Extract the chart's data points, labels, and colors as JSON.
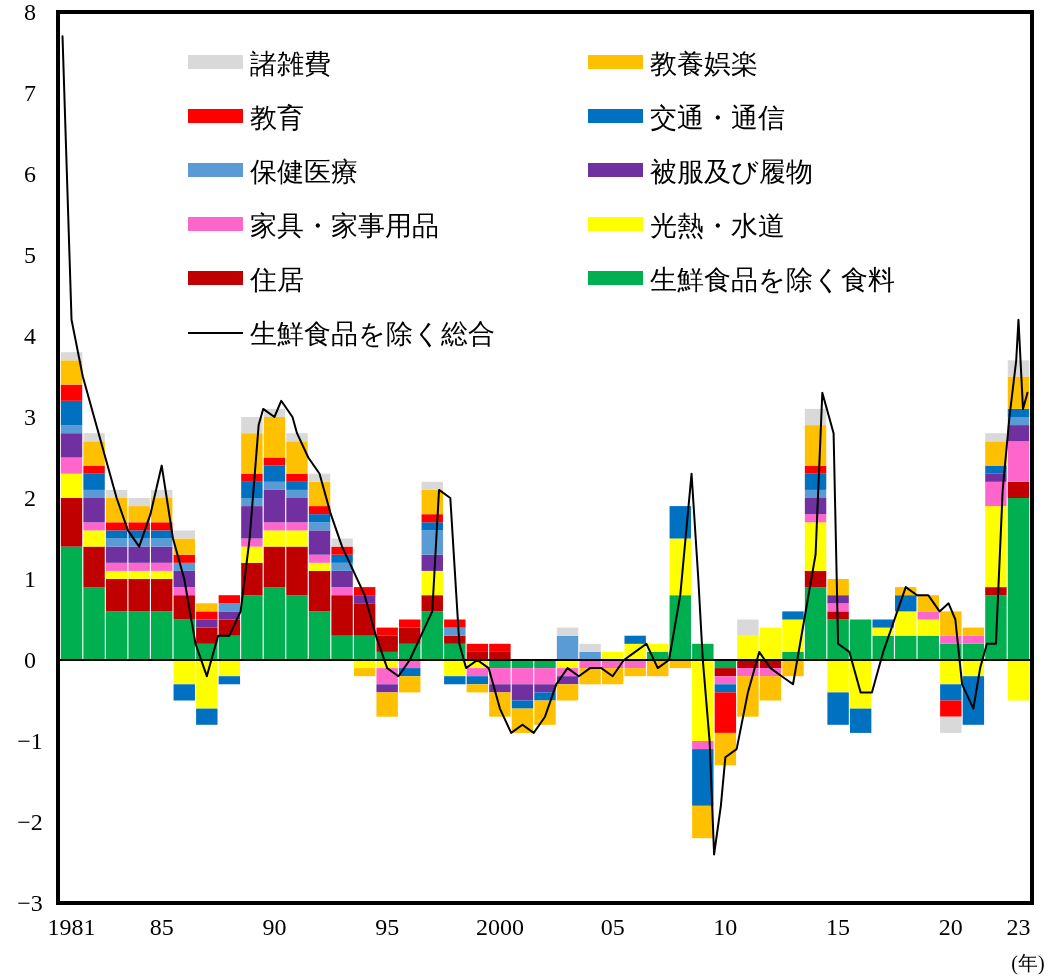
{
  "chart_data": {
    "type": "bar",
    "stacked": true,
    "legend": "top",
    "xlabel": "(年)",
    "xlim": [
      1980.4,
      2023.6
    ],
    "ylim": [
      -3,
      8
    ],
    "yticks": [
      -3,
      -2,
      -1,
      0,
      1,
      2,
      3,
      4,
      5,
      6,
      7,
      8
    ],
    "xticks": [
      {
        "value": 1981,
        "label": "1981"
      },
      {
        "value": 1985,
        "label": "85"
      },
      {
        "value": 1990,
        "label": "90"
      },
      {
        "value": 1995,
        "label": "95"
      },
      {
        "value": 2000,
        "label": "2000"
      },
      {
        "value": 2005,
        "label": "05"
      },
      {
        "value": 2010,
        "label": "10"
      },
      {
        "value": 2015,
        "label": "15"
      },
      {
        "value": 2020,
        "label": "20"
      },
      {
        "value": 2023,
        "label": "23"
      }
    ],
    "x": [
      1981,
      1982,
      1983,
      1984,
      1985,
      1986,
      1987,
      1988,
      1989,
      1990,
      1991,
      1992,
      1993,
      1994,
      1995,
      1996,
      1997,
      1998,
      1999,
      2000,
      2001,
      2002,
      2003,
      2004,
      2005,
      2006,
      2007,
      2008,
      2009,
      2010,
      2011,
      2012,
      2013,
      2014,
      2015,
      2016,
      2017,
      2018,
      2019,
      2020,
      2021,
      2022,
      2023
    ],
    "series": [
      {
        "name": "生鮮食品を除く食料",
        "color": "#00b050",
        "values": [
          1.4,
          0.9,
          0.6,
          0.6,
          0.6,
          0.5,
          0.2,
          0.3,
          0.8,
          0.9,
          0.8,
          0.6,
          0.3,
          0.3,
          0.1,
          0.2,
          0.6,
          0.2,
          0.0,
          -0.1,
          -0.1,
          -0.1,
          0.0,
          0.0,
          0.0,
          0.0,
          0.1,
          0.8,
          0.2,
          -0.1,
          0.0,
          0.0,
          0.1,
          0.9,
          0.5,
          0.5,
          0.3,
          0.3,
          0.3,
          0.2,
          0.2,
          0.8,
          2.0
        ]
      },
      {
        "name": "住居",
        "color": "#c00000",
        "values": [
          0.6,
          0.5,
          0.4,
          0.4,
          0.4,
          0.3,
          0.2,
          0.2,
          0.4,
          0.5,
          0.6,
          0.5,
          0.5,
          0.4,
          0.2,
          0.2,
          0.2,
          0.1,
          0.1,
          0.1,
          0.0,
          0.0,
          0.0,
          0.0,
          0.0,
          0.0,
          0.0,
          0.0,
          0.0,
          -0.1,
          -0.1,
          -0.1,
          0.0,
          0.2,
          0.1,
          0.0,
          0.0,
          0.0,
          0.0,
          0.0,
          0.0,
          0.1,
          0.2
        ]
      },
      {
        "name": "光熱・水道",
        "color": "#ffff00",
        "values": [
          0.3,
          0.2,
          0.1,
          0.1,
          0.1,
          -0.3,
          -0.6,
          -0.2,
          0.2,
          0.2,
          0.2,
          0.1,
          0.0,
          -0.1,
          -0.1,
          0.0,
          0.3,
          -0.2,
          -0.1,
          0.0,
          0.0,
          0.0,
          -0.1,
          0.0,
          0.1,
          0.2,
          0.1,
          0.7,
          -1.0,
          0.0,
          0.3,
          0.4,
          0.4,
          0.6,
          -0.4,
          -0.6,
          0.1,
          0.3,
          0.2,
          -0.3,
          -0.2,
          1.0,
          -0.5
        ]
      },
      {
        "name": "家具・家事用品",
        "color": "#ff66cc",
        "values": [
          0.2,
          0.1,
          0.1,
          0.1,
          0.1,
          0.1,
          0.0,
          0.0,
          0.1,
          0.1,
          0.1,
          0.1,
          0.1,
          0.0,
          -0.2,
          -0.1,
          0.0,
          0.0,
          -0.1,
          -0.2,
          -0.2,
          -0.2,
          -0.1,
          -0.1,
          -0.1,
          -0.1,
          0.0,
          0.0,
          -0.1,
          -0.1,
          -0.1,
          -0.1,
          0.0,
          0.1,
          0.1,
          0.0,
          0.0,
          0.0,
          0.1,
          0.1,
          0.1,
          0.3,
          0.5
        ]
      },
      {
        "name": "被服及び履物",
        "color": "#7030a0",
        "values": [
          0.3,
          0.3,
          0.2,
          0.2,
          0.2,
          0.2,
          0.1,
          0.1,
          0.4,
          0.4,
          0.3,
          0.3,
          0.2,
          0.1,
          -0.1,
          0.0,
          0.2,
          0.0,
          0.0,
          -0.1,
          -0.2,
          -0.1,
          -0.1,
          0.0,
          0.0,
          0.0,
          0.0,
          0.0,
          0.0,
          0.0,
          0.0,
          0.0,
          0.0,
          0.2,
          0.1,
          0.0,
          0.0,
          0.0,
          0.0,
          0.0,
          0.0,
          0.1,
          0.2
        ]
      },
      {
        "name": "保健医療",
        "color": "#5b9bd5",
        "values": [
          0.1,
          0.1,
          0.1,
          0.1,
          0.1,
          0.1,
          0.0,
          0.1,
          0.1,
          0.1,
          0.1,
          0.1,
          0.1,
          0.0,
          0.0,
          0.0,
          0.3,
          0.1,
          0.0,
          0.0,
          0.0,
          0.0,
          0.3,
          0.1,
          0.0,
          0.0,
          0.0,
          0.0,
          0.0,
          0.0,
          0.0,
          0.0,
          0.0,
          0.1,
          0.0,
          0.0,
          0.0,
          0.0,
          0.0,
          0.0,
          0.0,
          0.0,
          0.1
        ]
      },
      {
        "name": "交通・通信",
        "color": "#0070c0",
        "values": [
          0.3,
          0.2,
          0.1,
          0.1,
          0.1,
          -0.2,
          -0.2,
          -0.1,
          0.2,
          0.2,
          0.1,
          0.1,
          0.1,
          0.0,
          0.0,
          -0.1,
          0.1,
          -0.1,
          -0.1,
          0.0,
          -0.1,
          -0.1,
          0.0,
          0.0,
          0.0,
          0.1,
          0.0,
          0.4,
          -0.7,
          -0.1,
          0.0,
          0.0,
          0.1,
          0.2,
          -0.4,
          -0.3,
          0.1,
          0.2,
          0.0,
          -0.2,
          -0.6,
          0.1,
          0.1
        ]
      },
      {
        "name": "教育",
        "color": "#ff0000",
        "values": [
          0.2,
          0.1,
          0.1,
          0.1,
          0.1,
          0.1,
          0.1,
          0.1,
          0.1,
          0.1,
          0.1,
          0.1,
          0.1,
          0.1,
          0.1,
          0.1,
          0.1,
          0.1,
          0.1,
          0.1,
          0.0,
          0.0,
          0.0,
          0.0,
          0.0,
          0.0,
          0.0,
          0.0,
          0.0,
          -0.5,
          0.0,
          0.0,
          0.0,
          0.1,
          0.0,
          0.0,
          0.0,
          0.0,
          0.0,
          -0.2,
          0.0,
          0.0,
          0.0
        ]
      },
      {
        "name": "教養娯楽",
        "color": "#ffc000",
        "values": [
          0.3,
          0.3,
          0.3,
          0.2,
          0.3,
          0.2,
          0.1,
          0.0,
          0.5,
          0.5,
          0.4,
          0.3,
          0.0,
          -0.1,
          -0.3,
          -0.2,
          0.3,
          0.0,
          -0.1,
          -0.3,
          -0.3,
          -0.3,
          -0.2,
          -0.2,
          -0.2,
          -0.1,
          -0.2,
          -0.1,
          -0.4,
          -0.4,
          -0.5,
          -0.3,
          -0.2,
          0.5,
          0.2,
          0.0,
          0.0,
          0.1,
          0.2,
          0.3,
          0.1,
          0.3,
          0.4
        ]
      },
      {
        "name": "諸雑費",
        "color": "#d9d9d9",
        "values": [
          0.1,
          0.1,
          0.1,
          0.1,
          0.1,
          0.1,
          0.0,
          0.0,
          0.2,
          0.1,
          0.1,
          0.1,
          0.1,
          0.0,
          0.0,
          0.0,
          0.1,
          0.0,
          0.0,
          0.0,
          0.0,
          0.0,
          0.1,
          0.1,
          0.0,
          0.0,
          0.0,
          0.0,
          0.0,
          0.0,
          0.2,
          0.0,
          0.0,
          0.2,
          0.0,
          0.0,
          0.0,
          0.0,
          0.0,
          -0.2,
          0.0,
          0.1,
          0.2
        ]
      },
      {
        "name": "生鮮食品を除く総合",
        "type": "line",
        "color": "#000000",
        "x": [
          1980.6,
          1981.0,
          1981.5,
          1982.0,
          1982.5,
          1983.0,
          1983.5,
          1984.0,
          1984.5,
          1985.0,
          1985.5,
          1986.0,
          1986.5,
          1987.0,
          1987.5,
          1988.0,
          1988.5,
          1988.9,
          1989.3,
          1989.5,
          1990.0,
          1990.3,
          1990.8,
          1991.0,
          1991.5,
          1992.0,
          1992.5,
          1993.0,
          1993.5,
          1994.0,
          1994.5,
          1995.0,
          1995.5,
          1996.0,
          1996.5,
          1997.0,
          1997.3,
          1997.8,
          1998.2,
          1998.5,
          1999.0,
          1999.5,
          2000.0,
          2000.5,
          2001.0,
          2001.5,
          2002.0,
          2002.5,
          2003.0,
          2003.5,
          2004.0,
          2004.5,
          2005.0,
          2005.5,
          2006.0,
          2006.5,
          2007.0,
          2007.5,
          2008.0,
          2008.5,
          2008.8,
          2009.0,
          2009.3,
          2009.5,
          2009.8,
          2010.0,
          2010.5,
          2011.0,
          2011.5,
          2012.0,
          2012.5,
          2013.0,
          2013.5,
          2014.0,
          2014.3,
          2014.8,
          2015.0,
          2015.5,
          2016.0,
          2016.5,
          2017.0,
          2017.5,
          2018.0,
          2018.5,
          2019.0,
          2019.5,
          2019.9,
          2020.2,
          2020.5,
          2021.0,
          2021.3,
          2021.6,
          2022.0,
          2022.3,
          2022.6,
          2022.9,
          2023.0,
          2023.2,
          2023.4
        ],
        "values": [
          7.7,
          4.2,
          3.5,
          3.0,
          2.5,
          2.0,
          1.6,
          1.4,
          1.8,
          2.4,
          1.5,
          1.0,
          0.2,
          -0.2,
          0.3,
          0.3,
          0.6,
          1.5,
          2.9,
          3.1,
          3.0,
          3.2,
          3.0,
          2.8,
          2.5,
          2.3,
          1.8,
          1.4,
          1.1,
          0.8,
          0.3,
          -0.1,
          -0.2,
          0.0,
          0.3,
          0.6,
          2.1,
          2.0,
          0.2,
          -0.1,
          0.0,
          -0.1,
          -0.6,
          -0.9,
          -0.8,
          -0.9,
          -0.7,
          -0.3,
          -0.1,
          -0.2,
          -0.1,
          -0.1,
          -0.2,
          0.0,
          0.1,
          0.2,
          -0.1,
          0.0,
          0.8,
          2.3,
          1.0,
          0.0,
          -1.0,
          -2.4,
          -1.8,
          -1.2,
          -1.1,
          -0.4,
          0.1,
          -0.1,
          -0.2,
          -0.3,
          0.5,
          1.3,
          3.3,
          2.8,
          0.2,
          0.1,
          -0.4,
          -0.4,
          0.1,
          0.5,
          0.9,
          0.8,
          0.8,
          0.6,
          0.7,
          0.5,
          -0.3,
          -0.6,
          -0.1,
          0.2,
          0.2,
          2.1,
          3.0,
          3.7,
          4.2,
          3.1,
          3.3
        ]
      }
    ]
  }
}
